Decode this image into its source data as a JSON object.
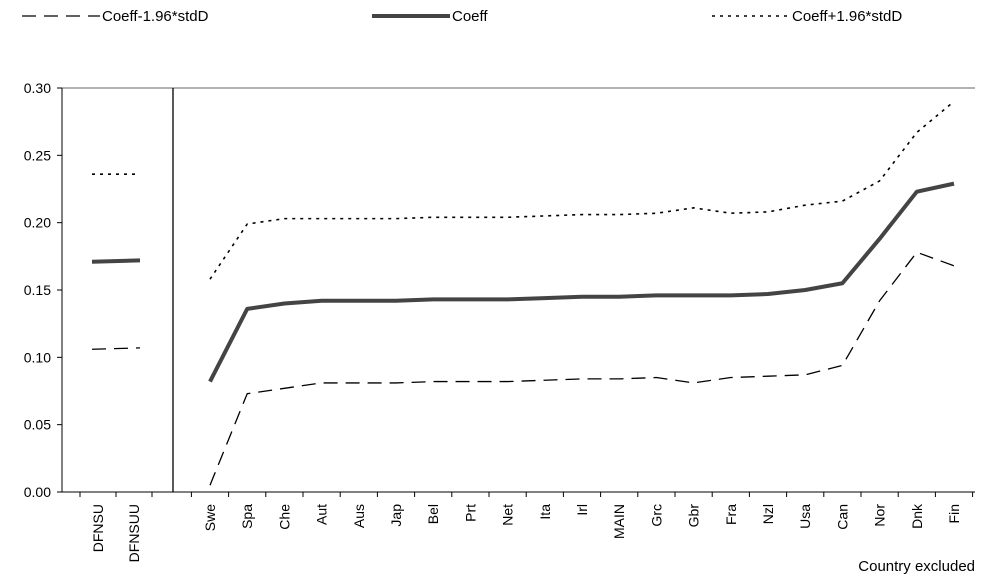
{
  "chart_data": {
    "type": "line",
    "title": "",
    "xlabel": "Country excluded",
    "ylabel": "",
    "ylim": [
      0,
      0.3
    ],
    "yticks": [
      "0.00",
      "0.05",
      "0.10",
      "0.15",
      "0.20",
      "0.25",
      "0.30"
    ],
    "yticks_values": [
      0,
      0.05,
      0.1,
      0.15,
      0.2,
      0.25,
      0.3
    ],
    "grid": false,
    "legend_position": "top",
    "left_panel": {
      "categories": [
        "DFNSU",
        "DFNSUU"
      ],
      "series": [
        {
          "name": "Coeff-1.96*stdD",
          "values": [
            0.106,
            0.107
          ]
        },
        {
          "name": "Coeff",
          "values": [
            0.171,
            0.172
          ]
        },
        {
          "name": "Coeff+1.96*stdD",
          "values": [
            0.236,
            0.236
          ]
        }
      ]
    },
    "categories": [
      "Swe",
      "Spa",
      "Che",
      "Aut",
      "Aus",
      "Jap",
      "Bel",
      "Prt",
      "Net",
      "Ita",
      "Irl",
      "MAIN",
      "Grc",
      "Gbr",
      "Fra",
      "Nzl",
      "Usa",
      "Can",
      "Nor",
      "Dnk",
      "Fin"
    ],
    "series": [
      {
        "name": "Coeff-1.96*stdD",
        "style": "dashed",
        "color": "#000000",
        "values": [
          0.005,
          0.073,
          0.077,
          0.081,
          0.081,
          0.081,
          0.082,
          0.082,
          0.082,
          0.083,
          0.084,
          0.084,
          0.085,
          0.081,
          0.085,
          0.086,
          0.087,
          0.094,
          0.142,
          0.178,
          0.168
        ]
      },
      {
        "name": "Coeff",
        "style": "solid",
        "color": "#444444",
        "values": [
          0.082,
          0.136,
          0.14,
          0.142,
          0.142,
          0.142,
          0.143,
          0.143,
          0.143,
          0.144,
          0.145,
          0.145,
          0.146,
          0.146,
          0.146,
          0.147,
          0.15,
          0.155,
          0.188,
          0.223,
          0.229
        ]
      },
      {
        "name": "Coeff+1.96*stdD",
        "style": "dotted",
        "color": "#000000",
        "values": [
          0.158,
          0.199,
          0.203,
          0.203,
          0.203,
          0.203,
          0.204,
          0.204,
          0.204,
          0.205,
          0.206,
          0.206,
          0.207,
          0.211,
          0.207,
          0.208,
          0.213,
          0.216,
          0.231,
          0.267,
          0.29
        ]
      }
    ]
  }
}
